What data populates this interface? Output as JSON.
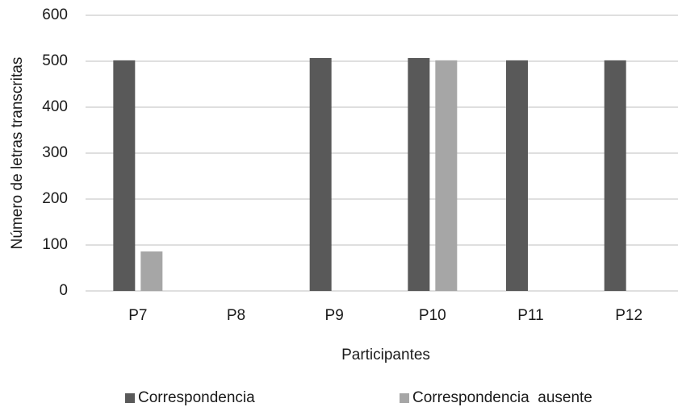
{
  "chart_data": {
    "type": "bar",
    "y_label": "Número de letras transcritas",
    "x_label": "Participantes",
    "categories": [
      "P7",
      "P8",
      "P9",
      "P10",
      "P11",
      "P12"
    ],
    "series": [
      {
        "name": "Correspondencia",
        "color": "#595959",
        "values": [
          502,
          0,
          507,
          507,
          502,
          502
        ]
      },
      {
        "name": "Correspondencia  ausente",
        "color": "#a6a6a6",
        "values": [
          86,
          0,
          0,
          502,
          0,
          0
        ]
      }
    ],
    "ylim": [
      0,
      600
    ],
    "yticks": [
      0,
      100,
      200,
      300,
      400,
      500,
      600
    ],
    "grid": true
  }
}
